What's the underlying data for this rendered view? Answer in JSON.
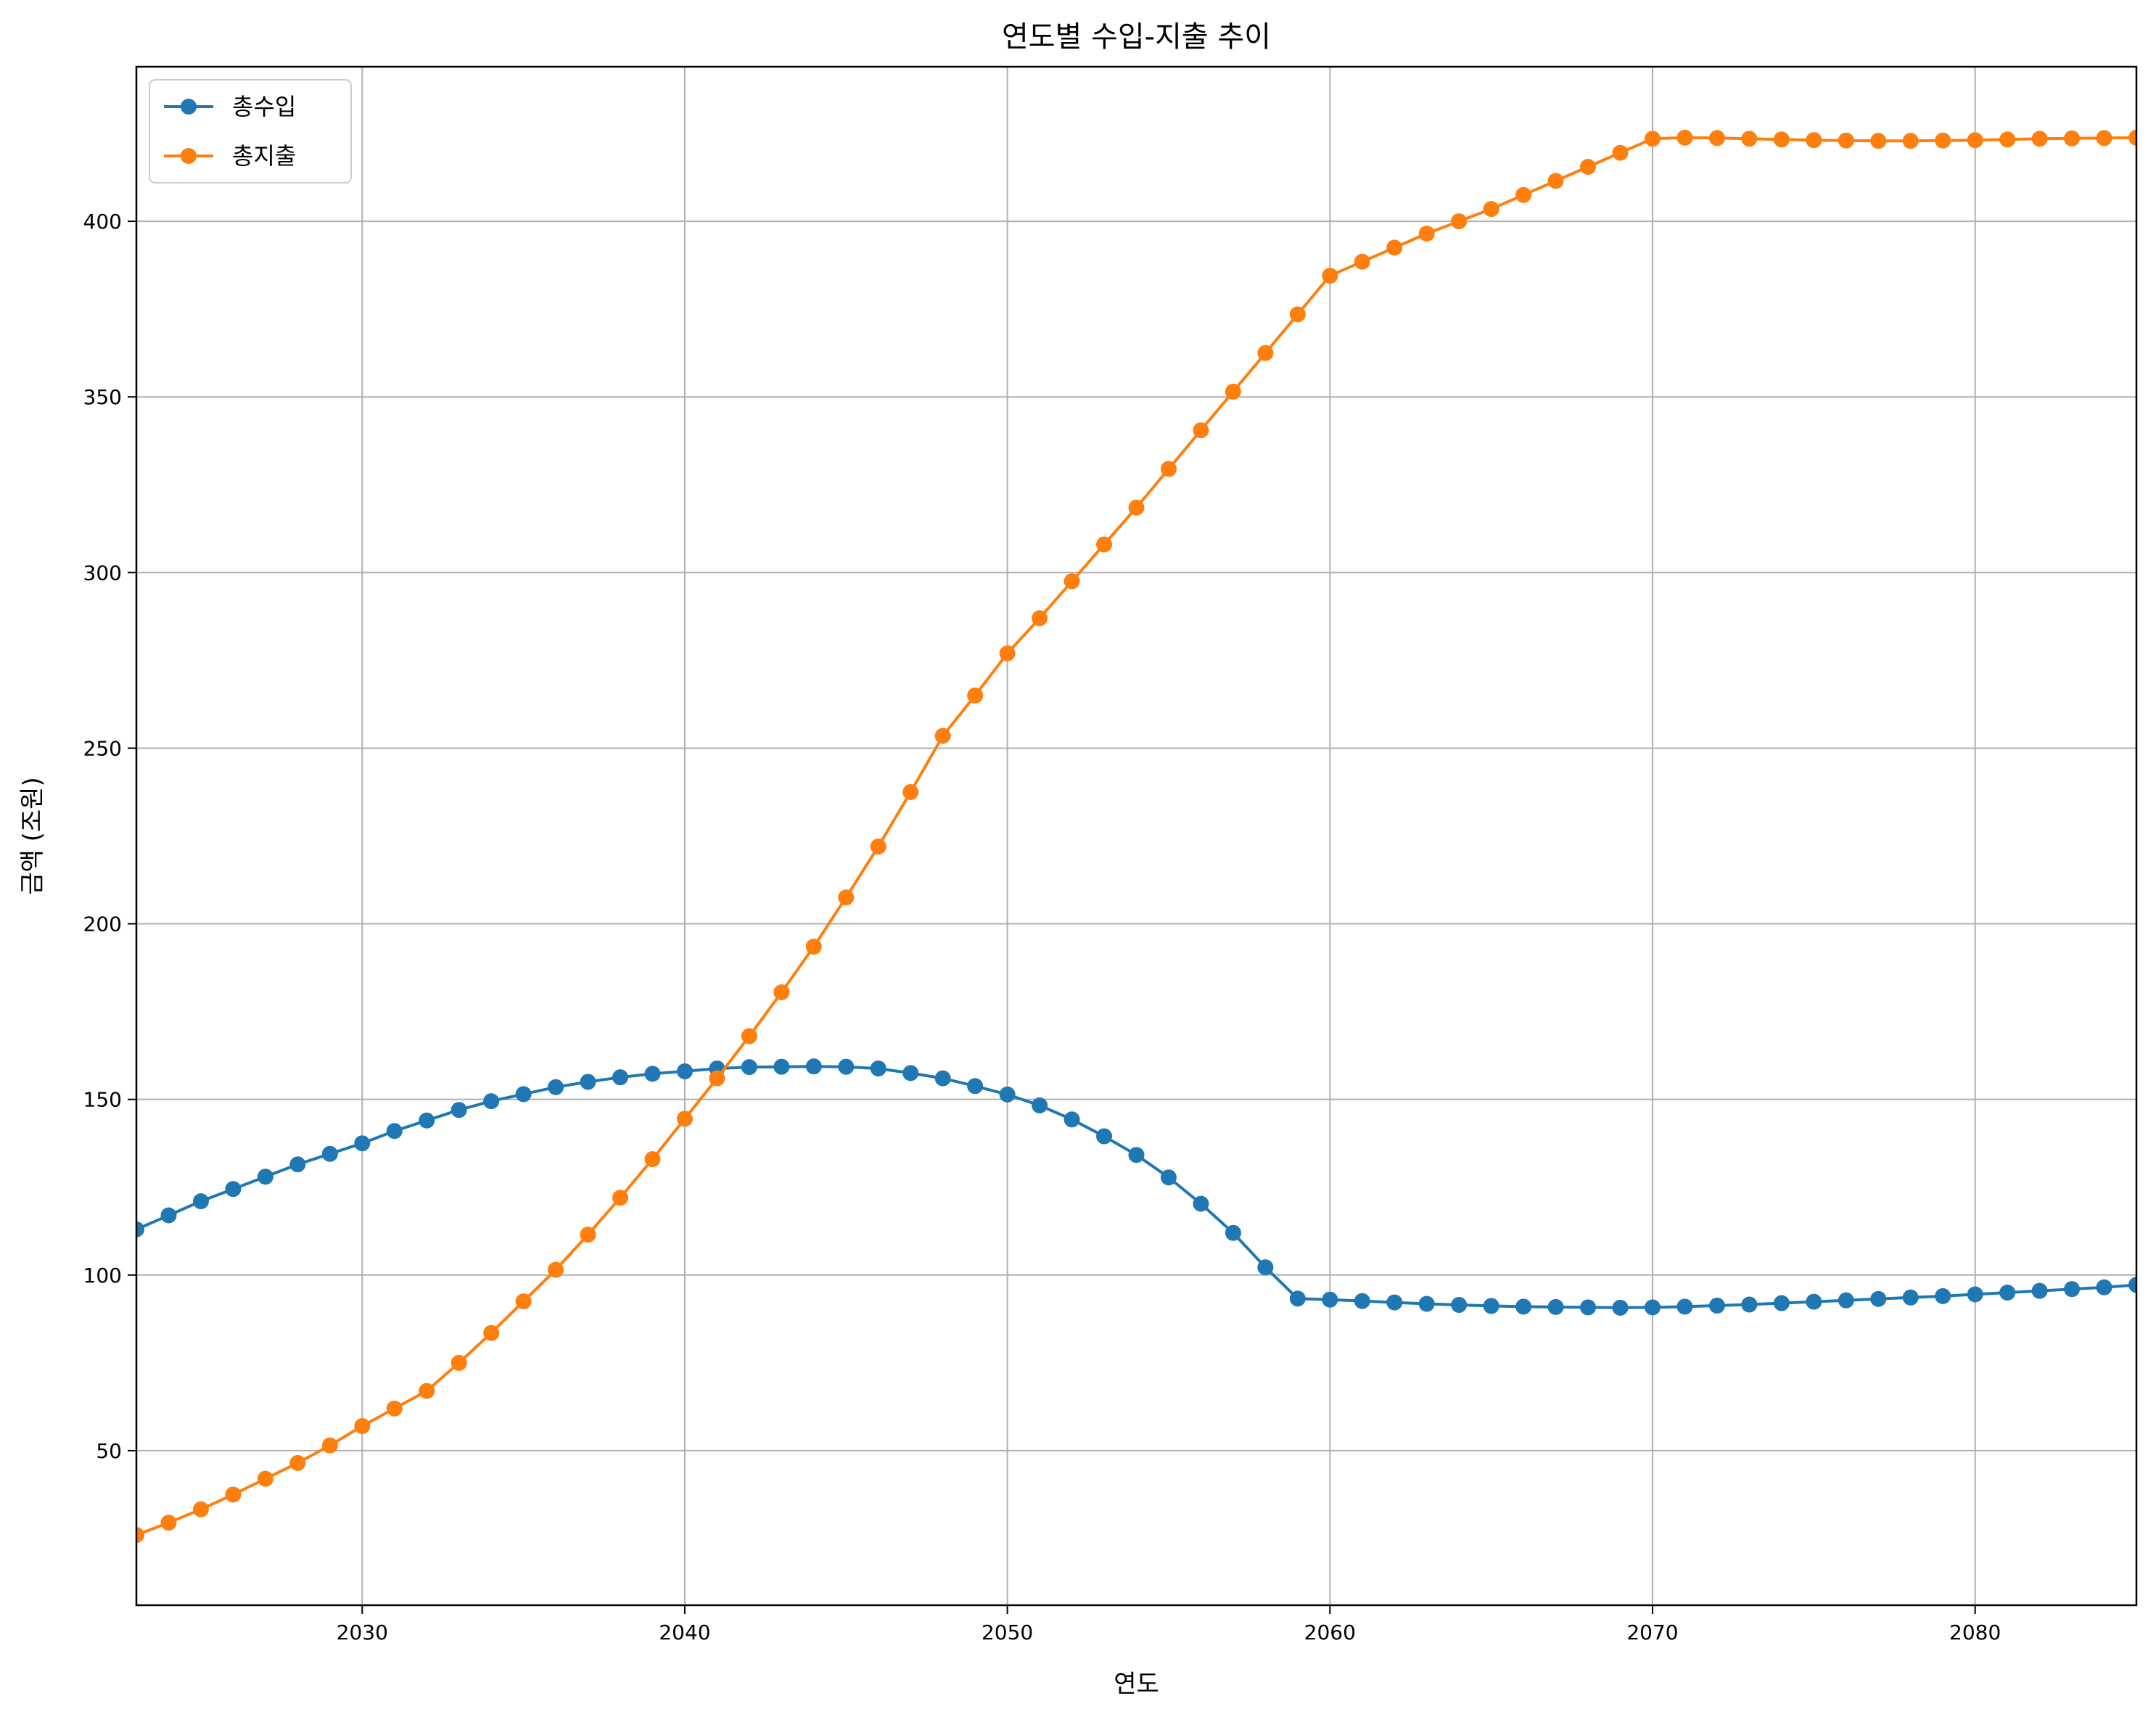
{
  "chart_data": {
    "type": "line",
    "title": "연도별 수입-지출 추이",
    "xlabel": "연도",
    "ylabel": "금액 (조원)",
    "xlim": [
      2023,
      2085
    ],
    "ylim": [
      6,
      444
    ],
    "xticks": [
      2030,
      2040,
      2050,
      2060,
      2070,
      2080
    ],
    "yticks": [
      50,
      100,
      150,
      200,
      250,
      300,
      350,
      400
    ],
    "grid": true,
    "legend": "top-left",
    "x": [
      2023,
      2024,
      2025,
      2026,
      2027,
      2028,
      2029,
      2030,
      2031,
      2032,
      2033,
      2034,
      2035,
      2036,
      2037,
      2038,
      2039,
      2040,
      2041,
      2042,
      2043,
      2044,
      2045,
      2046,
      2047,
      2048,
      2049,
      2050,
      2051,
      2052,
      2053,
      2054,
      2055,
      2056,
      2057,
      2058,
      2059,
      2060,
      2061,
      2062,
      2063,
      2064,
      2065,
      2066,
      2067,
      2068,
      2069,
      2070,
      2071,
      2072,
      2073,
      2074,
      2075,
      2076,
      2077,
      2078,
      2079,
      2080,
      2081,
      2082,
      2083,
      2084,
      2085
    ],
    "series": [
      {
        "name": "총수입",
        "color": "#1f77b4",
        "values": [
          113,
          117,
          121,
          124.5,
          128,
          131.5,
          134.5,
          137.5,
          141,
          144,
          147,
          149.5,
          151.5,
          153.5,
          155,
          156.3,
          157.3,
          158,
          158.8,
          159.2,
          159.3,
          159.4,
          159.3,
          158.8,
          157.5,
          156,
          153.8,
          151.4,
          148.3,
          144.3,
          139.5,
          134.2,
          127.8,
          120.3,
          112,
          102.2,
          93.3,
          93,
          92.6,
          92.2,
          91.8,
          91.5,
          91.2,
          91,
          90.9,
          90.8,
          90.7,
          90.8,
          91,
          91.3,
          91.6,
          92,
          92.4,
          92.8,
          93.2,
          93.6,
          94,
          94.5,
          95,
          95.5,
          96,
          96.5,
          97.2
        ]
      },
      {
        "name": "총지출",
        "color": "#ff7f0e",
        "values": [
          26,
          29.5,
          33.3,
          37.5,
          42,
          46.5,
          51.5,
          57,
          62,
          67,
          75,
          83.5,
          92.5,
          101.5,
          111.5,
          122,
          133,
          144.5,
          156,
          168,
          180.5,
          193.5,
          207.5,
          222,
          237.5,
          253.5,
          265,
          277,
          287,
          297.5,
          308,
          318.5,
          329.5,
          340.5,
          351.5,
          362.5,
          373.5,
          384.5,
          388.5,
          392.5,
          396.5,
          400,
          403.5,
          407.5,
          411.5,
          415.5,
          419.5,
          423.5,
          423.8,
          423.7,
          423.5,
          423.3,
          423.1,
          423,
          422.9,
          422.9,
          423,
          423.1,
          423.3,
          423.5,
          423.6,
          423.7,
          423.8
        ]
      }
    ]
  }
}
